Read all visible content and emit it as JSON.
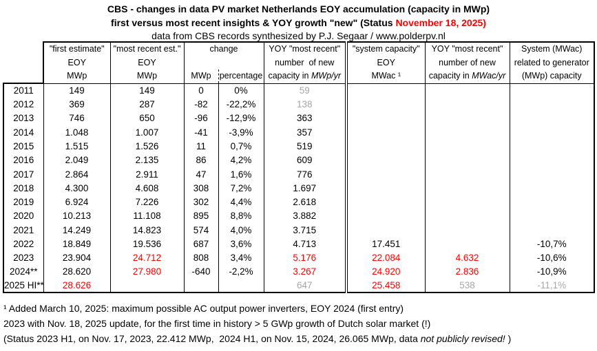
{
  "colors": {
    "red": "#ff0000",
    "grey": "#a6a6a6",
    "border": "#000000",
    "background": "#ffffff"
  },
  "title": {
    "line1": "CBS - changes in data PV market Netherlands EOY accumulation (capacity in MWp)",
    "line2_prefix": "first versus most recent insights & YOY growth \"new\" (Status ",
    "line2_date": "November 18, 2025)",
    "line3": "data from CBS records synthesized by P.J. Segaar / www.polderpv.nl"
  },
  "chart_data": {
    "type": "table",
    "title": "CBS - changes in data PV market Netherlands EOY accumulation (capacity in MWp)",
    "subtitle": "first versus most recent insights & YOY growth \"new\" (Status November 18, 2025)",
    "source": "data from CBS records synthesized by P.J. Segaar / www.polderpv.nl",
    "headers": {
      "first_estimate": {
        "l1": "\"first estimate\"",
        "l2": "EOY",
        "l3": "MWp"
      },
      "most_recent": {
        "l1": "\"most recent est.\"",
        "l2": "EOY",
        "l3": "MWp"
      },
      "change": {
        "l1": "change",
        "sub1": "MWp",
        "sub2": "percentage"
      },
      "yoy_mwp": {
        "l1": "YOY \"most recent\"",
        "l2": "number  of new",
        "l3a": "capacity in ",
        "l3b": "MWp/yr"
      },
      "system_capacity": {
        "l1": "\"system capacity\"",
        "l2": "EOY",
        "l3": "MWac ¹"
      },
      "yoy_mwac": {
        "l1": "YOY \"most recent\"",
        "l2": "number of new",
        "l3a": "capacity in ",
        "l3b": "MWac/yr"
      },
      "system_ratio": {
        "l1": "System (MWac)",
        "l2": "related to generator",
        "l3": "(MWp) capacity"
      }
    },
    "columns": [
      "year",
      "first_estimate_EOY_MWp",
      "most_recent_est_EOY_MWp",
      "change_MWp",
      "change_percentage",
      "YOY_new_capacity_MWp_per_yr",
      "system_capacity_EOY_MWac",
      "YOY_new_capacity_MWac_per_yr",
      "system_MWac_vs_generator_MWp"
    ],
    "rows": [
      {
        "label": "2011",
        "values": [
          "149",
          "149",
          "0",
          "0%",
          "59",
          "",
          "",
          ""
        ],
        "styles": [
          "",
          "",
          "",
          "",
          "grey",
          "",
          "",
          ""
        ]
      },
      {
        "label": "2012",
        "values": [
          "369",
          "287",
          "-82",
          "-22,2%",
          "138",
          "",
          "",
          ""
        ],
        "styles": [
          "",
          "",
          "",
          "",
          "grey",
          "",
          "",
          ""
        ]
      },
      {
        "label": "2013",
        "values": [
          "746",
          "650",
          "-96",
          "-12,9%",
          "363",
          "",
          "",
          ""
        ],
        "styles": [
          "",
          "",
          "",
          "",
          "",
          "",
          "",
          ""
        ]
      },
      {
        "label": "2014",
        "values": [
          "1.048",
          "1.007",
          "-41",
          "-3,9%",
          "357",
          "",
          "",
          ""
        ],
        "styles": [
          "",
          "",
          "",
          "",
          "",
          "",
          "",
          ""
        ]
      },
      {
        "label": "2015",
        "values": [
          "1.515",
          "1.526",
          "11",
          "0,7%",
          "519",
          "",
          "",
          ""
        ],
        "styles": [
          "",
          "",
          "",
          "",
          "",
          "",
          "",
          ""
        ]
      },
      {
        "label": "2016",
        "values": [
          "2.049",
          "2.135",
          "86",
          "4,2%",
          "609",
          "",
          "",
          ""
        ],
        "styles": [
          "",
          "",
          "",
          "",
          "",
          "",
          "",
          ""
        ]
      },
      {
        "label": "2017",
        "values": [
          "2.864",
          "2.911",
          "47",
          "1,6%",
          "776",
          "",
          "",
          ""
        ],
        "styles": [
          "",
          "",
          "",
          "",
          "",
          "",
          "",
          ""
        ]
      },
      {
        "label": "2018",
        "values": [
          "4.300",
          "4.608",
          "308",
          "7,2%",
          "1.697",
          "",
          "",
          ""
        ],
        "styles": [
          "",
          "",
          "",
          "",
          "",
          "",
          "",
          ""
        ]
      },
      {
        "label": "2019",
        "values": [
          "6.924",
          "7.226",
          "302",
          "4,4%",
          "2.618",
          "",
          "",
          ""
        ],
        "styles": [
          "",
          "",
          "",
          "",
          "",
          "",
          "",
          ""
        ]
      },
      {
        "label": "2020",
        "values": [
          "10.213",
          "11.108",
          "895",
          "8,8%",
          "3.882",
          "",
          "",
          ""
        ],
        "styles": [
          "",
          "",
          "",
          "",
          "",
          "",
          "",
          ""
        ]
      },
      {
        "label": "2021",
        "values": [
          "14.249",
          "14.823",
          "574",
          "4,0%",
          "3.715",
          "",
          "",
          ""
        ],
        "styles": [
          "",
          "",
          "",
          "",
          "",
          "",
          "",
          ""
        ]
      },
      {
        "label": "2022",
        "values": [
          "18.849",
          "19.536",
          "687",
          "3,6%",
          "4.713",
          "17.451",
          "",
          "-10,7%"
        ],
        "styles": [
          "",
          "",
          "",
          "",
          "",
          "",
          "",
          ""
        ]
      },
      {
        "label": "2023",
        "values": [
          "23.904",
          "24.712",
          "808",
          "3,4%",
          "5.176",
          "22.084",
          "4.632",
          "-10,6%"
        ],
        "styles": [
          "",
          "red",
          "",
          "",
          "red",
          "red",
          "red",
          ""
        ]
      },
      {
        "label": "2024**",
        "values": [
          "28.620",
          "27.980",
          "-640",
          "-2,2%",
          "3.267",
          "24.920",
          "2.836",
          "-10,9%"
        ],
        "styles": [
          "",
          "red",
          "",
          "",
          "red",
          "red",
          "red",
          ""
        ]
      },
      {
        "label": "2025 HI**",
        "values": [
          "28.626",
          "",
          "",
          "",
          "647",
          "25.458",
          "538",
          "-11,1%"
        ],
        "styles": [
          "red",
          "",
          "",
          "",
          "grey",
          "red",
          "grey",
          "grey"
        ]
      }
    ]
  },
  "footnotes": {
    "line1": "¹ Added March 10, 2025: maximum possible AC output power inverters, EOY 2024 (first entry)",
    "line2": "2023 with Nov. 18, 2025 update, for the first time in history > 5 GWp growth of Dutch solar market (!)",
    "line3_prefix": "(Status 2023 H1, on Nov. 17, 2023, 22.412 MWp,  2024 H1, on Nov. 15, 2024, 26.065 MWp, data ",
    "line3_italic": "not publicly revised!",
    "line3_suffix": " )"
  }
}
